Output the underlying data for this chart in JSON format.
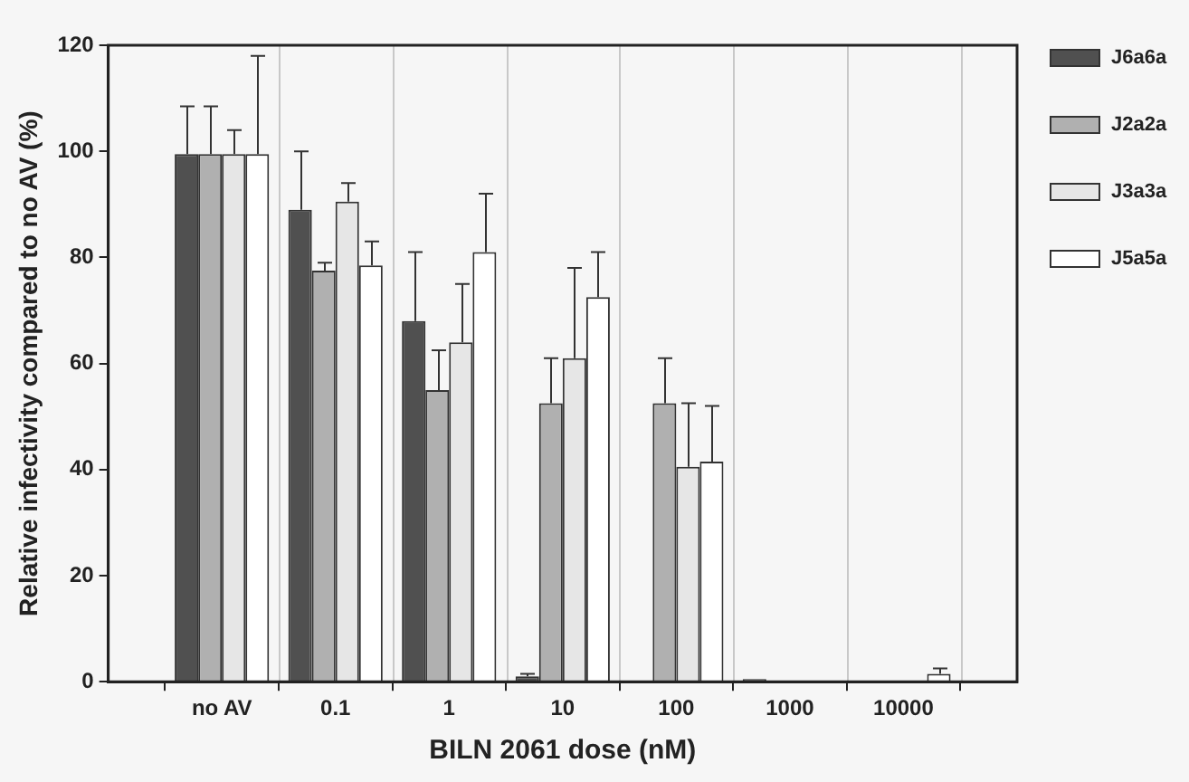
{
  "chart_data": {
    "type": "bar",
    "xlabel": "BILN 2061 dose (nM)",
    "ylabel": "Relative infectivity compared to no AV (%)",
    "categories": [
      "no AV",
      "0.1",
      "1",
      "10",
      "100",
      "1000",
      "10000"
    ],
    "series": [
      {
        "name": "J6a6a",
        "color": "#505050",
        "values": [
          99.5,
          89,
          68,
          1,
          0,
          0.5,
          0
        ],
        "errors": [
          [
            99.5,
            108.5
          ],
          [
            89,
            100
          ],
          [
            68,
            81
          ],
          [
            1,
            1.5
          ],
          null,
          null,
          null
        ]
      },
      {
        "name": "J2a2a",
        "color": "#b0b0b0",
        "values": [
          99.5,
          77.5,
          55,
          52.5,
          52.5,
          0,
          0
        ],
        "errors": [
          [
            99.5,
            108.5
          ],
          [
            77.5,
            79
          ],
          [
            55,
            62.5
          ],
          [
            52.5,
            61
          ],
          [
            52.5,
            61
          ],
          null,
          null
        ]
      },
      {
        "name": "J3a3a",
        "color": "#e6e6e6",
        "values": [
          99.5,
          90.5,
          64,
          61,
          40.5,
          0,
          0
        ],
        "errors": [
          [
            99.5,
            104
          ],
          [
            90.5,
            94
          ],
          [
            64,
            75
          ],
          [
            61,
            78
          ],
          [
            40.5,
            52.5
          ],
          null,
          null
        ]
      },
      {
        "name": "J5a5a",
        "color": "#ffffff",
        "values": [
          99.5,
          78.5,
          81,
          72.5,
          41.5,
          0,
          1.5
        ],
        "errors": [
          [
            99.5,
            118
          ],
          [
            78.5,
            83
          ],
          [
            81,
            92
          ],
          [
            72.5,
            81
          ],
          [
            41.5,
            52
          ],
          null,
          [
            1.5,
            2.5
          ]
        ]
      }
    ],
    "ylim": [
      0,
      120
    ],
    "yticks": [
      0,
      20,
      40,
      60,
      80,
      100,
      120
    ],
    "grid": "x",
    "legend": "top right"
  }
}
